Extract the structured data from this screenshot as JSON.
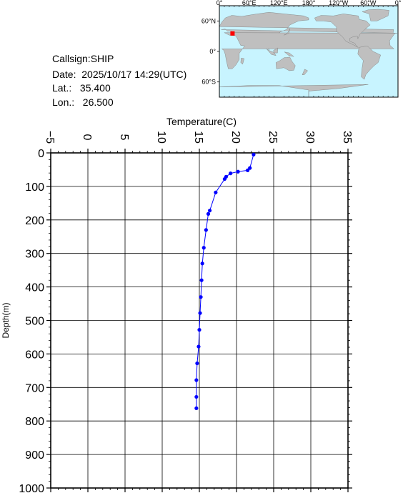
{
  "info": {
    "callsign": "Callsign:SHIP",
    "date": "Date:  2025/10/17 14:29(UTC)",
    "lat": "Lat.:   35.400",
    "lon": "Lon.:   26.500"
  },
  "map": {
    "lon_labels": [
      "0°",
      "60°E",
      "120°E",
      "180°",
      "120°W",
      "60°W",
      "0°"
    ],
    "lat_labels": [
      "60°N",
      "0°",
      "60°S"
    ],
    "marker_lat": 35.4,
    "marker_lon": 26.5,
    "ocean_color": "#c8f4ff",
    "land_color": "#bfbfbf",
    "marker_color": "#ff0000"
  },
  "chart_data": {
    "type": "line",
    "xlabel": "Temperature(C)",
    "ylabel": "Depth(m)",
    "xlim": [
      -5,
      35
    ],
    "ylim": [
      0,
      1000
    ],
    "x_ticks": [
      -5,
      0,
      5,
      10,
      15,
      20,
      25,
      30,
      35
    ],
    "y_ticks": [
      0,
      100,
      200,
      300,
      400,
      500,
      600,
      700,
      800,
      900,
      1000
    ],
    "grid": true,
    "series_color": "#0000ff",
    "points": [
      {
        "x": 22.3,
        "y": 5
      },
      {
        "x": 21.8,
        "y": 45
      },
      {
        "x": 21.5,
        "y": 52
      },
      {
        "x": 20.2,
        "y": 56
      },
      {
        "x": 19.2,
        "y": 61
      },
      {
        "x": 18.6,
        "y": 71
      },
      {
        "x": 18.4,
        "y": 78
      },
      {
        "x": 17.2,
        "y": 118
      },
      {
        "x": 16.4,
        "y": 172
      },
      {
        "x": 16.2,
        "y": 182
      },
      {
        "x": 15.9,
        "y": 230
      },
      {
        "x": 15.6,
        "y": 283
      },
      {
        "x": 15.4,
        "y": 330
      },
      {
        "x": 15.3,
        "y": 380
      },
      {
        "x": 15.2,
        "y": 430
      },
      {
        "x": 15.1,
        "y": 478
      },
      {
        "x": 15.0,
        "y": 528
      },
      {
        "x": 14.9,
        "y": 578
      },
      {
        "x": 14.7,
        "y": 628
      },
      {
        "x": 14.6,
        "y": 678
      },
      {
        "x": 14.6,
        "y": 728
      },
      {
        "x": 14.6,
        "y": 762
      }
    ]
  }
}
